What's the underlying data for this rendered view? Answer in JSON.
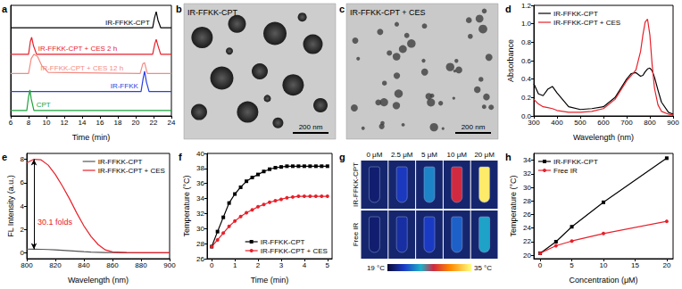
{
  "chart_data": [
    {
      "type": "line",
      "title": "a",
      "x_label": "Time (min)",
      "xlim": [
        6,
        24
      ],
      "xticks": [
        6,
        8,
        10,
        12,
        14,
        16,
        18,
        20,
        22,
        24
      ],
      "ylim": [
        0,
        5.2
      ],
      "tick_labels": "x",
      "grid": false,
      "series": [
        {
          "name": "IR-FFKK-CPT",
          "color": "#000000",
          "x": [
            6,
            21.9,
            22.1,
            22.3,
            22.5,
            22.8,
            24
          ],
          "values": [
            4.15,
            4.15,
            4.6,
            4.9,
            4.5,
            4.15,
            4.15
          ]
        },
        {
          "name": "IR-FFKK-CPT + CES 2 h",
          "color": "#e8202a",
          "x": [
            6,
            8.0,
            8.2,
            8.35,
            8.55,
            8.9,
            21.9,
            22.15,
            22.3,
            22.5,
            22.8,
            24
          ],
          "values": [
            2.9,
            2.9,
            3.5,
            3.7,
            3.3,
            2.9,
            2.9,
            3.4,
            3.6,
            3.3,
            2.9,
            2.9
          ]
        },
        {
          "name": "IR-FFKK-CPT + CES 12 h",
          "color": "#f28b82",
          "x": [
            6,
            8.0,
            8.3,
            8.6,
            9.0,
            9.5,
            10.2,
            20.5,
            20.8,
            21.0,
            21.3,
            24
          ],
          "values": [
            2.0,
            2.0,
            2.7,
            2.9,
            2.8,
            2.35,
            2.05,
            2.0,
            2.45,
            2.5,
            2.0,
            2.0
          ]
        },
        {
          "name": "IR-FFKK",
          "color": "#2b3fe0",
          "x": [
            6,
            20.6,
            20.85,
            21.0,
            21.2,
            21.5,
            24
          ],
          "values": [
            1.15,
            1.15,
            1.8,
            2.1,
            1.6,
            1.15,
            1.15
          ]
        },
        {
          "name": "CPT",
          "color": "#1aa33a",
          "x": [
            6,
            7.8,
            8.0,
            8.15,
            8.3,
            8.6,
            24
          ],
          "values": [
            0.26,
            0.26,
            0.9,
            1.22,
            0.8,
            0.26,
            0.26
          ]
        }
      ]
    },
    {
      "type": "line",
      "title": "d",
      "x_label": "Wavelength (nm)",
      "y_label": "Absorbance",
      "xlim": [
        300,
        900
      ],
      "xticks": [
        300,
        400,
        500,
        600,
        700,
        800,
        900
      ],
      "ylim": [
        0,
        1.2
      ],
      "yticks": [
        {
          "value": 0,
          "label": "0.0"
        },
        0.2,
        0.4,
        0.6,
        0.8,
        {
          "value": 1,
          "label": "1.0"
        },
        1.2
      ],
      "legend": "upper left",
      "grid": false,
      "x": [
        300,
        320,
        340,
        360,
        380,
        400,
        450,
        500,
        550,
        600,
        650,
        700,
        720,
        740,
        760,
        770,
        780,
        790,
        800,
        810,
        820,
        835,
        850,
        880,
        900
      ],
      "series": [
        {
          "name": "IR-FFKK-CPT",
          "color": "#000000",
          "values": [
            0.35,
            0.24,
            0.22,
            0.29,
            0.32,
            0.25,
            0.1,
            0.07,
            0.08,
            0.1,
            0.2,
            0.4,
            0.46,
            0.47,
            0.43,
            0.44,
            0.48,
            0.51,
            0.52,
            0.49,
            0.42,
            0.28,
            0.15,
            0.04,
            0.02
          ]
        },
        {
          "name": "IR-FFKK-CPT + CES",
          "color": "#e8202a",
          "values": [
            0.18,
            0.13,
            0.1,
            0.09,
            0.08,
            0.06,
            0.04,
            0.04,
            0.05,
            0.08,
            0.18,
            0.38,
            0.44,
            0.5,
            0.7,
            0.88,
            1.02,
            1.05,
            0.88,
            0.55,
            0.3,
            0.12,
            0.05,
            0.02,
            0.01
          ]
        }
      ]
    },
    {
      "type": "line",
      "title": "e",
      "x_label": "Wavelength (nm)",
      "y_label": "FL Intensity (a.u.)",
      "xlim": [
        800,
        900
      ],
      "xticks": [
        800,
        820,
        840,
        860,
        880,
        900
      ],
      "ylim": [
        -0.5,
        8.5
      ],
      "yticks": [
        0,
        2,
        4,
        6,
        8
      ],
      "legend": "upper right",
      "grid": false,
      "annotations": [
        {
          "text": "30.1 folds"
        }
      ],
      "x": [
        800,
        805,
        810,
        815,
        820,
        825,
        830,
        835,
        840,
        845,
        850,
        855,
        860,
        870,
        880,
        890,
        900
      ],
      "series": [
        {
          "name": "IR-FFKK-CPT",
          "color": "#555555",
          "values": [
            0.32,
            0.31,
            0.3,
            0.28,
            0.25,
            0.22,
            0.18,
            0.14,
            0.1,
            0.07,
            0.05,
            0.03,
            0.02,
            0.01,
            0,
            0,
            0
          ]
        },
        {
          "name": "IR-FFKK-CPT + CES",
          "color": "#e8202a",
          "values": [
            7.7,
            8.0,
            7.95,
            7.5,
            6.7,
            5.7,
            4.6,
            3.4,
            2.3,
            1.4,
            0.7,
            0.25,
            0.08,
            0.02,
            0,
            0,
            0
          ]
        }
      ]
    },
    {
      "type": "line",
      "title": "f",
      "x_label": "Time (min)",
      "y_label": "Temperature (°C)",
      "xlim": [
        -0.2,
        5.2
      ],
      "xticks": [
        0,
        1,
        2,
        3,
        4,
        5
      ],
      "ylim": [
        26,
        40
      ],
      "yticks": [
        26,
        28,
        30,
        32,
        34,
        36,
        38,
        40
      ],
      "legend": "lower right",
      "grid": false,
      "x": [
        0,
        0.25,
        0.5,
        0.75,
        1,
        1.25,
        1.5,
        1.75,
        2,
        2.25,
        2.5,
        2.75,
        3,
        3.25,
        3.5,
        3.75,
        4,
        4.25,
        4.5,
        4.75,
        5
      ],
      "series": [
        {
          "name": "IR-FFKK-CPT",
          "color": "#000000",
          "marker": "square",
          "values": [
            27.6,
            29.6,
            31.5,
            33.4,
            34.6,
            35.5,
            36.3,
            36.8,
            37.2,
            37.6,
            37.9,
            38.1,
            38.2,
            38.3,
            38.3,
            38.3,
            38.3,
            38.3,
            38.3,
            38.3,
            38.3
          ]
        },
        {
          "name": "IR-FFKK-CPT + CES",
          "color": "#e8202a",
          "marker": "circle",
          "values": [
            27.6,
            28.5,
            29.4,
            30.3,
            31.0,
            31.6,
            32.1,
            32.5,
            32.9,
            33.2,
            33.5,
            33.7,
            33.9,
            34.1,
            34.2,
            34.3,
            34.3,
            34.3,
            34.3,
            34.3,
            34.3
          ]
        }
      ]
    },
    {
      "type": "line",
      "title": "h",
      "x_label": "Concentration (μM)",
      "y_label": "Temperature (°C)",
      "xlim": [
        -1,
        21
      ],
      "xticks": [
        0,
        5,
        10,
        15,
        20
      ],
      "ylim": [
        19.5,
        35
      ],
      "yticks": [
        20,
        22,
        24,
        26,
        28,
        30,
        32,
        34
      ],
      "legend": "upper left",
      "grid": false,
      "x": [
        0,
        2.5,
        5,
        10,
        20
      ],
      "series": [
        {
          "name": "IR-FFKK-CPT",
          "color": "#000000",
          "marker": "square",
          "values": [
            20.3,
            22.0,
            24.2,
            27.8,
            34.3
          ]
        },
        {
          "name": "Free IR",
          "color": "#e8202a",
          "marker": "circle",
          "values": [
            20.3,
            21.4,
            22.1,
            23.2,
            25.0
          ]
        }
      ]
    }
  ],
  "images": [
    {
      "title": "b",
      "label": "IR-FFKK-CPT",
      "scale_bar": "200 nm"
    },
    {
      "title": "c",
      "label": "IR-FFKK-CPT + CES",
      "scale_bar": "200 nm"
    }
  ],
  "thermal_images": {
    "title": "g",
    "columns": [
      "0 μM",
      "2.5 μM",
      "5 μM",
      "10 μM",
      "20 μM"
    ],
    "rows": [
      "IR-FFKK-CPT",
      "Free IR"
    ],
    "cells": [
      [
        20.3,
        22.0,
        24.2,
        27.8,
        34.3
      ],
      [
        20.3,
        21.4,
        22.1,
        23.2,
        25.0
      ]
    ],
    "colorbar": {
      "range": [
        19,
        35
      ],
      "ticks": [
        {
          "value": 19,
          "label": "19 °C"
        },
        {
          "value": 35,
          "label": "35 °C"
        }
      ]
    }
  }
}
